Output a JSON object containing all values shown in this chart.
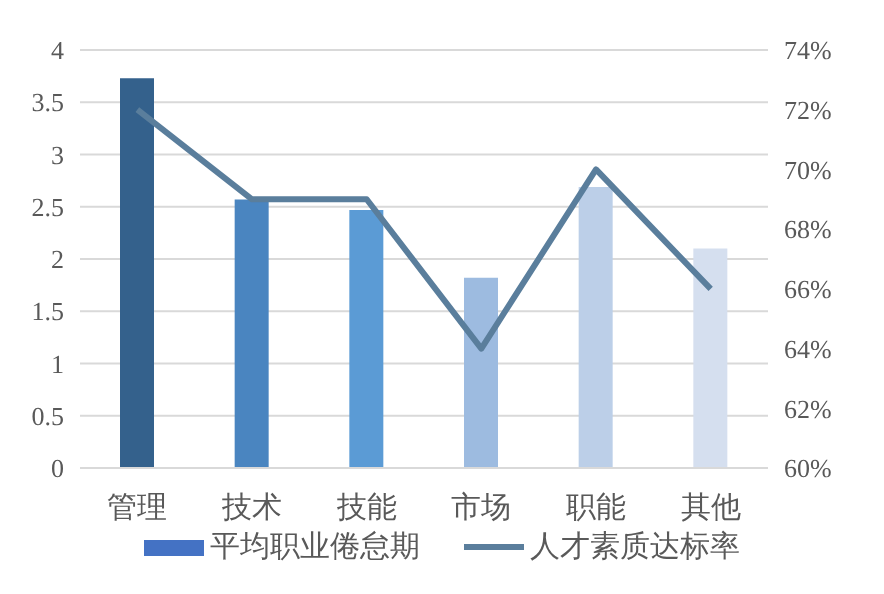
{
  "chart_data": {
    "type": "bar",
    "categories": [
      "管理",
      "技术",
      "技能",
      "市场",
      "职能",
      "其他"
    ],
    "series": [
      {
        "name": "平均职业倦怠期",
        "color": "#4472c4",
        "colors": [
          "#34618c",
          "#4a85c0",
          "#5b9bd5",
          "#9dbbe0",
          "#bccfe8",
          "#d5dfef"
        ],
        "values": [
          3.73,
          2.57,
          2.47,
          1.82,
          2.69,
          2.1
        ]
      },
      {
        "name": "人才素质达标率",
        "type": "line",
        "axis": "y2",
        "color": "#5a7e9c",
        "values": [
          72,
          69,
          69,
          64,
          70,
          66
        ]
      }
    ],
    "ylim": [
      0,
      4
    ],
    "yticks": [
      0,
      0.5,
      1,
      1.5,
      2,
      2.5,
      3,
      3.5,
      4
    ],
    "y2lim": [
      60,
      74
    ],
    "y2ticks": [
      {
        "value": 60,
        "label": "60%"
      },
      {
        "value": 62,
        "label": "62%"
      },
      {
        "value": 64,
        "label": "64%"
      },
      {
        "value": 66,
        "label": "66%"
      },
      {
        "value": 68,
        "label": "68%"
      },
      {
        "value": 70,
        "label": "70%"
      },
      {
        "value": 72,
        "label": "72%"
      },
      {
        "value": 74,
        "label": "74%"
      }
    ],
    "grid": "y",
    "legend": "bottom",
    "marker": "none"
  }
}
